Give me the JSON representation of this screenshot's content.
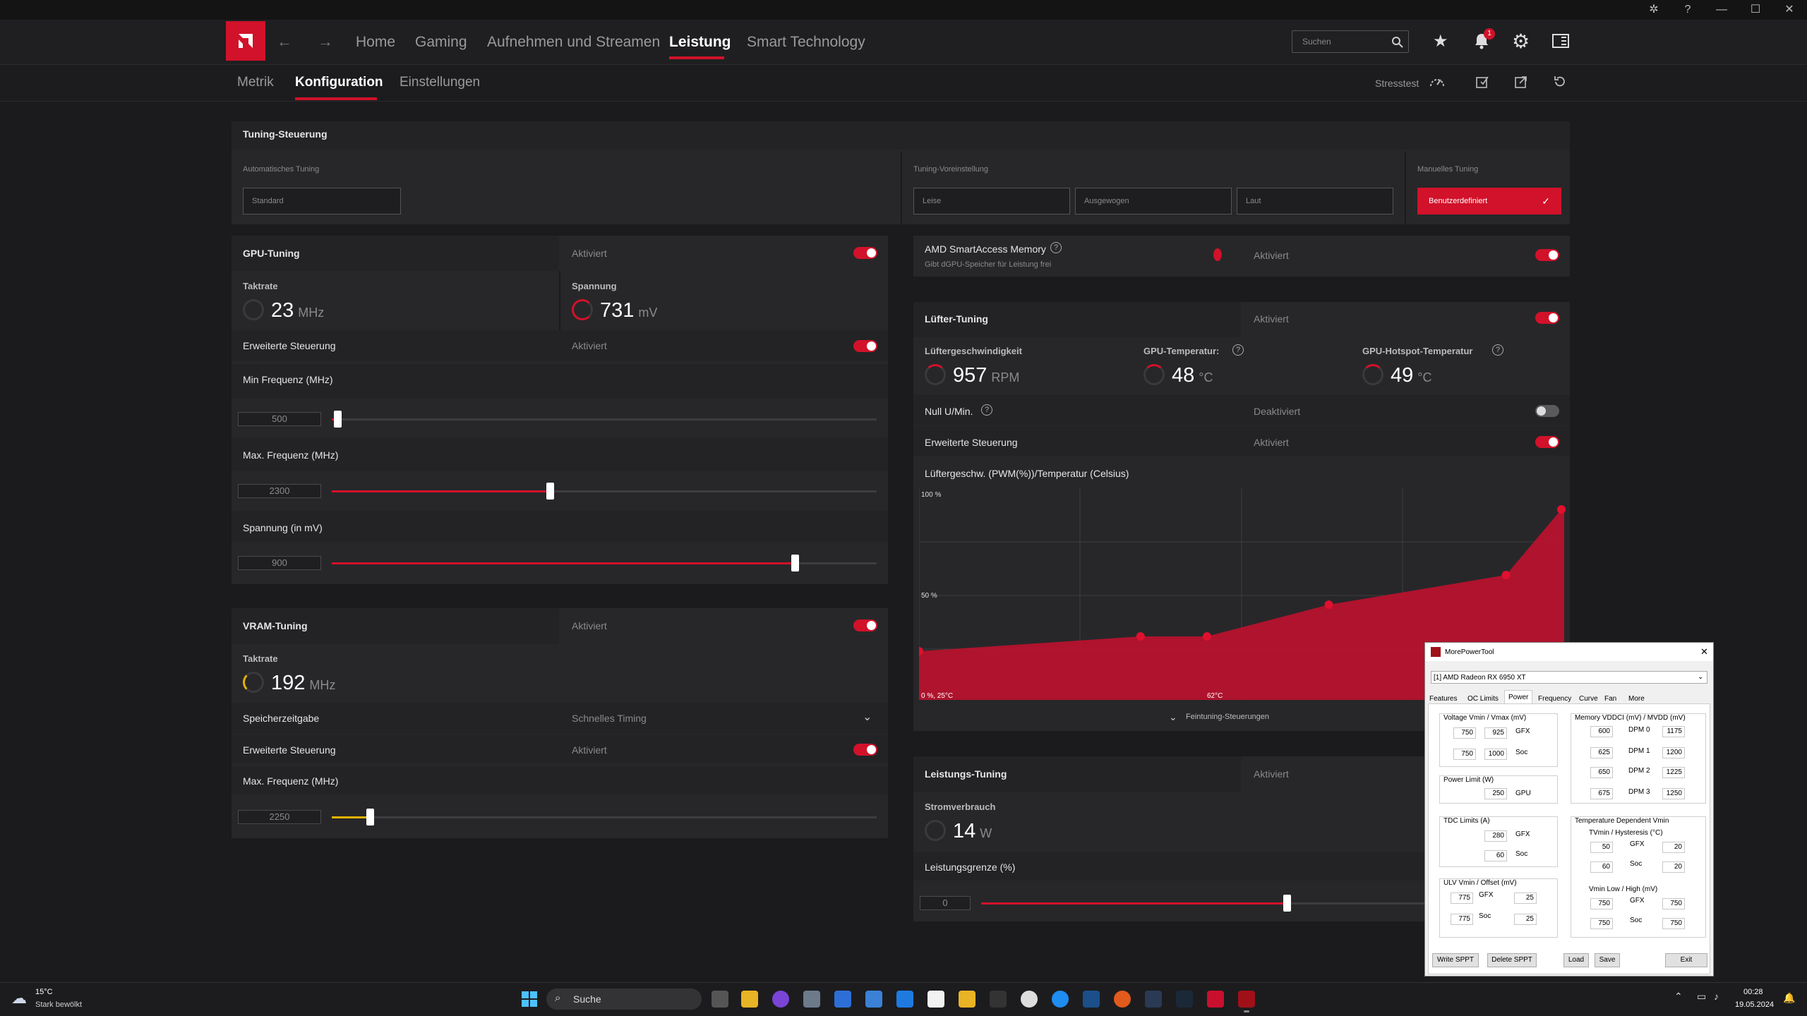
{
  "window": {
    "controls": {
      "bug_icon": "bug-icon",
      "help_icon": "help-icon",
      "minimize": "—",
      "maximize": "☐",
      "close": "✕"
    }
  },
  "nav": {
    "items": [
      "Home",
      "Gaming",
      "Aufnehmen und Streamen",
      "Leistung",
      "Smart Technology"
    ],
    "active": "Leistung",
    "search_placeholder": "Suchen",
    "notification_count": "1"
  },
  "subnav": {
    "items": [
      "Metrik",
      "Konfiguration",
      "Einstellungen"
    ],
    "active": "Konfiguration",
    "stresstest": "Stresstest"
  },
  "tuning": {
    "title": "Tuning-Steuerung",
    "auto_label": "Automatisches Tuning",
    "auto_value": "Standard",
    "preset_label": "Tuning-Voreinstellung",
    "presets": [
      "Leise",
      "Ausgewogen",
      "Laut"
    ],
    "manual_label": "Manuelles Tuning",
    "manual_value": "Benutzerdefiniert"
  },
  "gpu": {
    "title": "GPU-Tuning",
    "status": "Aktiviert",
    "clock_label": "Taktrate",
    "clock_value": "23",
    "clock_unit": "MHz",
    "voltage_label": "Spannung",
    "voltage_value": "731",
    "voltage_unit": "mV",
    "adv_label": "Erweiterte Steuerung",
    "adv_status": "Aktiviert",
    "min_freq_label": "Min Frequenz (MHz)",
    "min_freq_value": "500",
    "max_freq_label": "Max. Frequenz (MHz)",
    "max_freq_value": "2300",
    "volt_label": "Spannung (in mV)",
    "volt_value": "900",
    "min_freq_level": 0.01,
    "max_freq_level": 0.4,
    "volt_level": 0.85
  },
  "vram": {
    "title": "VRAM-Tuning",
    "status": "Aktiviert",
    "clock_label": "Taktrate",
    "clock_value": "192",
    "clock_unit": "MHz",
    "timing_label": "Speicherzeitgabe",
    "timing_value": "Schnelles Timing",
    "adv_label": "Erweiterte Steuerung",
    "adv_status": "Aktiviert",
    "max_freq_label": "Max. Frequenz (MHz)",
    "max_freq_value": "2250",
    "max_freq_level": 0.07
  },
  "sam": {
    "title": "AMD SmartAccess Memory",
    "subtitle": "Gibt dGPU-Speicher für Leistung frei",
    "status": "Aktiviert"
  },
  "fan": {
    "title": "Lüfter-Tuning",
    "status": "Aktiviert",
    "speed_label": "Lüftergeschwindigkeit",
    "speed_value": "957",
    "speed_unit": "RPM",
    "gputemp_label": "GPU-Temperatur:",
    "gputemp_value": "48",
    "gputemp_unit": "°C",
    "hotspot_label": "GPU-Hotspot-Temperatur",
    "hotspot_value": "49",
    "hotspot_unit": "°C",
    "zero_label": "Null U/Min.",
    "zero_status": "Deaktiviert",
    "adv_label": "Erweiterte Steuerung",
    "adv_status": "Aktiviert",
    "curve_label": "Lüftergeschw. (PWM(%))/Temperatur (Celsius)",
    "y100": "100 %",
    "y50": "50 %",
    "origin": "0 %, 25°C",
    "x62": "62°C",
    "finetune": "Feintuning-Steuerungen"
  },
  "power": {
    "title": "Leistungs-Tuning",
    "status": "Aktiviert",
    "draw_label": "Stromverbrauch",
    "draw_value": "14",
    "draw_unit": "W",
    "limit_label": "Leistungsgrenze (%)",
    "limit_value": "0",
    "limit_level": 0.5
  },
  "mpt": {
    "title": "MorePowerTool",
    "device": "[1] AMD Radeon RX 6950 XT",
    "tabs": [
      "Features",
      "OC Limits",
      "Power",
      "Frequency",
      "Curve",
      "Fan",
      "More"
    ],
    "voltage_title": "Voltage Vmin / Vmax (mV)",
    "v_gfx_min": "750",
    "v_gfx_max": "925",
    "v_soc_min": "750",
    "v_soc_max": "1000",
    "power_title": "Power Limit (W)",
    "power_gpu": "250",
    "tdc_title": "TDC Limits (A)",
    "tdc_gfx": "280",
    "tdc_soc": "60",
    "ulv_title": "ULV Vmin / Offset (mV)",
    "ulv_gfx": "775",
    "ulv_gfx_off": "25",
    "ulv_soc": "775",
    "ulv_soc_off": "25",
    "mem_title": "Memory VDDCI (mV) / MVDD (mV)",
    "dpm0_a": "600",
    "dpm0_b": "1175",
    "dpm1_a": "625",
    "dpm1_b": "1200",
    "dpm2_a": "650",
    "dpm2_b": "1225",
    "dpm3_a": "675",
    "dpm3_b": "1250",
    "temp_title": "Temperature Dependent Vmin",
    "tvmin_title": "TVmin / Hysteresis (°C)",
    "tv_gfx": "50",
    "tv_gfx_h": "20",
    "tv_soc": "60",
    "tv_soc_h": "20",
    "vmin_title": "Vmin Low / High (mV)",
    "vm_gfx_l": "750",
    "vm_gfx_h": "750",
    "vm_soc_l": "750",
    "vm_soc_h": "750",
    "lbl_gfx": "GFX",
    "lbl_soc": "Soc",
    "lbl_gpu": "GPU",
    "lbl_dpm0": "DPM 0",
    "lbl_dpm1": "DPM 1",
    "lbl_dpm2": "DPM 2",
    "lbl_dpm3": "DPM 3",
    "btn_write": "Write SPPT",
    "btn_delete": "Delete SPPT",
    "btn_load": "Load",
    "btn_save": "Save",
    "btn_exit": "Exit"
  },
  "taskbar": {
    "weather_temp": "15°C",
    "weather_desc": "Stark bewölkt",
    "search": "Suche",
    "time": "00:28",
    "date": "19.05.2024"
  },
  "fan_curve_points": [
    {
      "temp": 25,
      "pwm": 23
    },
    {
      "temp": 45,
      "pwm": 30
    },
    {
      "temp": 51,
      "pwm": 30
    },
    {
      "temp": 62,
      "pwm": 45
    },
    {
      "temp": 78,
      "pwm": 59
    },
    {
      "temp": 83,
      "pwm": 90
    }
  ]
}
